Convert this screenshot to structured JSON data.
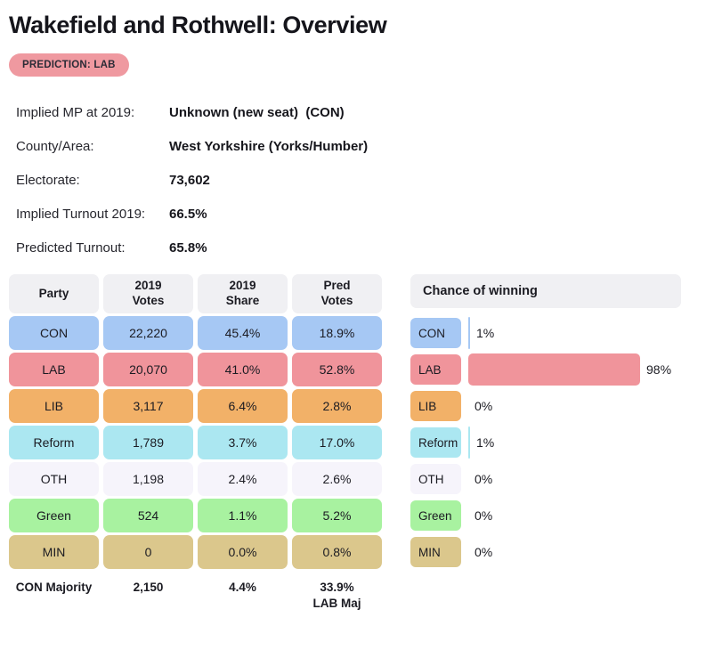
{
  "page": {
    "title": "Wakefield and Rothwell: Overview",
    "prediction_badge": "PREDICTION: LAB",
    "badge_color": "#ef99a0"
  },
  "info": {
    "rows": [
      {
        "label": "Implied MP at 2019:",
        "value": "Unknown (new seat)  (CON)"
      },
      {
        "label": "County/Area:",
        "value": "West Yorkshire (Yorks/Humber)"
      },
      {
        "label": "Electorate:",
        "value": "73,602"
      },
      {
        "label": "Implied Turnout 2019:",
        "value": "66.5%"
      },
      {
        "label": "Predicted Turnout:",
        "value": "65.8%"
      }
    ]
  },
  "results_table": {
    "headers": [
      {
        "line1": "Party",
        "line2": ""
      },
      {
        "line1": "2019",
        "line2": "Votes"
      },
      {
        "line1": "2019",
        "line2": "Share"
      },
      {
        "line1": "Pred",
        "line2": "Votes"
      }
    ],
    "rows": [
      {
        "party": "CON",
        "votes_2019": "22,220",
        "share_2019": "45.4%",
        "pred_votes": "18.9%",
        "color": "#a6c8f4"
      },
      {
        "party": "LAB",
        "votes_2019": "20,070",
        "share_2019": "41.0%",
        "pred_votes": "52.8%",
        "color": "#f0949b"
      },
      {
        "party": "LIB",
        "votes_2019": "3,117",
        "share_2019": "6.4%",
        "pred_votes": "2.8%",
        "color": "#f2b168"
      },
      {
        "party": "Reform",
        "votes_2019": "1,789",
        "share_2019": "3.7%",
        "pred_votes": "17.0%",
        "color": "#abe7f1"
      },
      {
        "party": "OTH",
        "votes_2019": "1,198",
        "share_2019": "2.4%",
        "pred_votes": "2.6%",
        "color": "#f6f4fb"
      },
      {
        "party": "Green",
        "votes_2019": "524",
        "share_2019": "1.1%",
        "pred_votes": "5.2%",
        "color": "#a8f2a0"
      },
      {
        "party": "MIN",
        "votes_2019": "0",
        "share_2019": "0.0%",
        "pred_votes": "0.8%",
        "color": "#dbc78c"
      }
    ],
    "footer": {
      "label": "CON Majority",
      "votes": "2,150",
      "share": "4.4%",
      "pred_line1": "33.9%",
      "pred_line2": "LAB Maj"
    }
  },
  "chance_panel": {
    "title": "Chance of winning",
    "rows": [
      {
        "party": "CON",
        "value": 1,
        "pct_label": "1%",
        "color": "#a6c8f4"
      },
      {
        "party": "LAB",
        "value": 98,
        "pct_label": "98%",
        "color": "#f0949b"
      },
      {
        "party": "LIB",
        "value": 0,
        "pct_label": "0%",
        "color": "#f2b168"
      },
      {
        "party": "Reform",
        "value": 1,
        "pct_label": "1%",
        "color": "#abe7f1"
      },
      {
        "party": "OTH",
        "value": 0,
        "pct_label": "0%",
        "color": "#f6f4fb"
      },
      {
        "party": "Green",
        "value": 0,
        "pct_label": "0%",
        "color": "#a8f2a0"
      },
      {
        "party": "MIN",
        "value": 0,
        "pct_label": "0%",
        "color": "#dbc78c"
      }
    ]
  },
  "chart_data": {
    "type": "bar",
    "orientation": "horizontal",
    "title": "Chance of winning",
    "categories": [
      "CON",
      "LAB",
      "LIB",
      "Reform",
      "OTH",
      "Green",
      "MIN"
    ],
    "values": [
      1,
      98,
      0,
      1,
      0,
      0,
      0
    ],
    "xlabel": "",
    "ylabel": "",
    "xlim": [
      0,
      100
    ],
    "grid": false,
    "legend_position": "none"
  },
  "colors": {
    "header_bg": "#f0f0f3",
    "text": "#1b1b22"
  }
}
